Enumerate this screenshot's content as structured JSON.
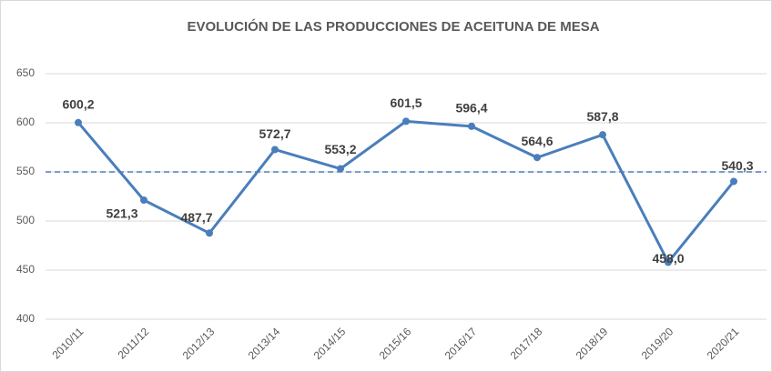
{
  "chart_data": {
    "type": "line",
    "title": "EVOLUCIÓN DE LAS PRODUCCIONES DE ACEITUNA DE MESA",
    "categories": [
      "2010/11",
      "2011/12",
      "2012/13",
      "2013/14",
      "2014/15",
      "2015/16",
      "2016/17",
      "2017/18",
      "2018/19",
      "2019/20",
      "2020/21"
    ],
    "series": [
      {
        "name": "Producción",
        "color": "#4a7ebb",
        "values": [
          600.2,
          521.3,
          487.7,
          572.7,
          553.2,
          601.5,
          596.4,
          564.6,
          587.8,
          458.0,
          540.3
        ],
        "value_labels": [
          "600,2",
          "521,3",
          "487,7",
          "572,7",
          "553,2",
          "601,5",
          "596,4",
          "564,6",
          "587,8",
          "458,0",
          "540,3"
        ]
      }
    ],
    "reference_line": {
      "value": 550,
      "color": "#4a7ebb"
    },
    "ylim": [
      400,
      650
    ],
    "yticks": [
      400,
      450,
      500,
      550,
      600,
      650
    ],
    "grid": true
  }
}
